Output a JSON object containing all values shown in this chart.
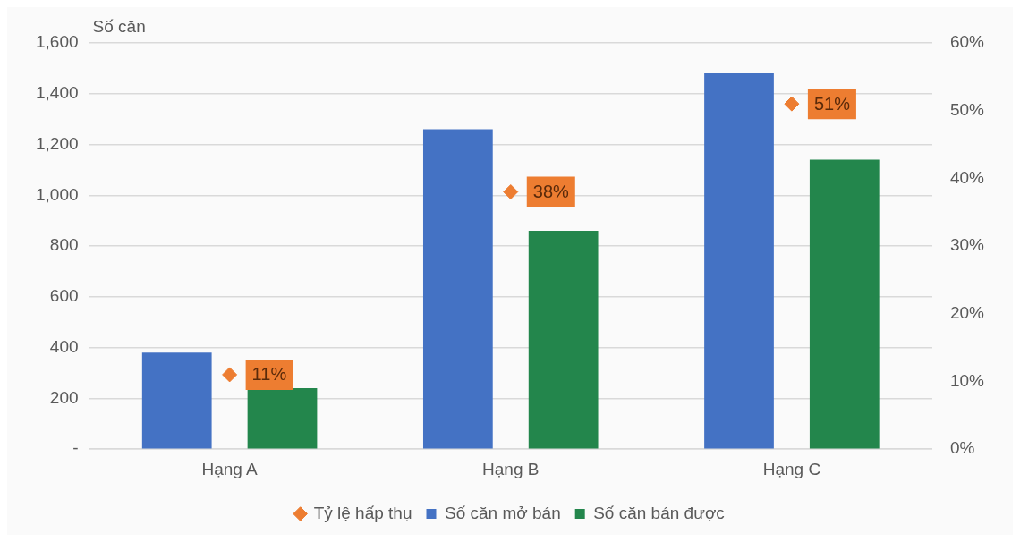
{
  "chart_data": {
    "type": "bar",
    "ylabel": "Số căn",
    "categories": [
      "Hạng A",
      "Hạng B",
      "Hạng C"
    ],
    "series": [
      {
        "name": "Số căn mở bán",
        "color": "#4472c4",
        "values": [
          380,
          1260,
          1480
        ]
      },
      {
        "name": "Số căn bán được",
        "color": "#23864c",
        "values": [
          240,
          860,
          1140
        ]
      },
      {
        "name": "Tỷ lệ hấp thụ",
        "type": "scatter",
        "axis": "y2",
        "color": "#ed7d31",
        "x": [
          "Hạng A",
          "Hạng B",
          "Hạng C"
        ],
        "values": [
          11,
          38,
          51
        ],
        "value_labels": [
          "11%",
          "38%",
          "51%"
        ]
      }
    ],
    "ylim": [
      0,
      1600
    ],
    "yticks": [
      {
        "value": 0,
        "label": "-"
      },
      {
        "value": 200,
        "label": "200"
      },
      {
        "value": 400,
        "label": "400"
      },
      {
        "value": 600,
        "label": "600"
      },
      {
        "value": 800,
        "label": "800"
      },
      {
        "value": 1000,
        "label": "1,000"
      },
      {
        "value": 1200,
        "label": "1,200"
      },
      {
        "value": 1400,
        "label": "1,400"
      },
      {
        "value": 1600,
        "label": "1,600"
      }
    ],
    "y2lim": [
      0,
      60
    ],
    "y2ticks": [
      {
        "value": 0,
        "label": "0%"
      },
      {
        "value": 10,
        "label": "10%"
      },
      {
        "value": 20,
        "label": "20%"
      },
      {
        "value": 30,
        "label": "30%"
      },
      {
        "value": 40,
        "label": "40%"
      },
      {
        "value": 50,
        "label": "50%"
      },
      {
        "value": 60,
        "label": "60%"
      }
    ],
    "grid": "y",
    "legend": "bottom",
    "marker": "diamond"
  }
}
